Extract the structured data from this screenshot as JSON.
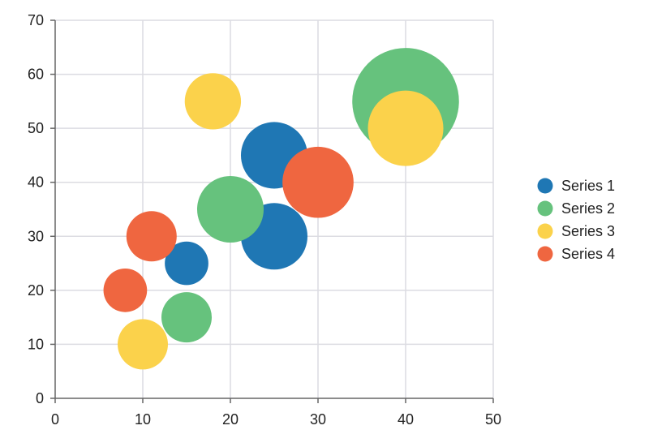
{
  "chart_data": {
    "type": "scatter",
    "subtype": "bubble",
    "title": "",
    "xlabel": "",
    "ylabel": "",
    "xlim": [
      0,
      50
    ],
    "ylim": [
      0,
      70
    ],
    "x_ticks": [
      0,
      10,
      20,
      30,
      40,
      50
    ],
    "y_ticks": [
      0,
      10,
      20,
      30,
      40,
      50,
      60,
      70
    ],
    "grid": true,
    "legend_position": "right",
    "series": [
      {
        "name": "Series 1",
        "color": "#1f77b4",
        "points": [
          {
            "x": 15,
            "y": 25,
            "size": 3
          },
          {
            "x": 25,
            "y": 30,
            "size": 7
          },
          {
            "x": 25,
            "y": 45,
            "size": 7
          }
        ]
      },
      {
        "name": "Series 2",
        "color": "#66c27d",
        "points": [
          {
            "x": 15,
            "y": 15,
            "size": 4
          },
          {
            "x": 20,
            "y": 35,
            "size": 7
          },
          {
            "x": 40,
            "y": 55,
            "size": 18
          }
        ]
      },
      {
        "name": "Series 3",
        "color": "#fbd24b",
        "points": [
          {
            "x": 10,
            "y": 10,
            "size": 4
          },
          {
            "x": 18,
            "y": 55,
            "size": 5
          },
          {
            "x": 40,
            "y": 50,
            "size": 9
          }
        ]
      },
      {
        "name": "Series 4",
        "color": "#ef6640",
        "points": [
          {
            "x": 8,
            "y": 20,
            "size": 3
          },
          {
            "x": 11,
            "y": 30,
            "size": 4
          },
          {
            "x": 30,
            "y": 40,
            "size": 8
          }
        ]
      }
    ]
  }
}
